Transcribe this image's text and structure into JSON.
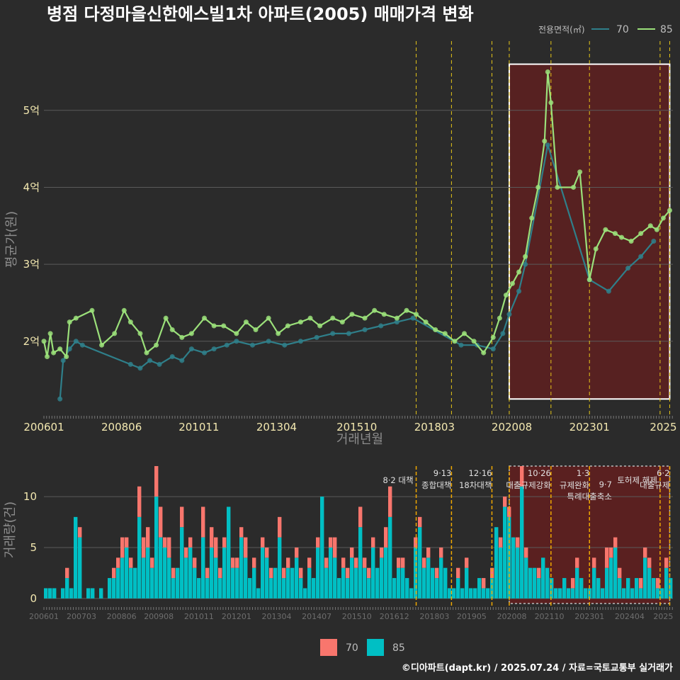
{
  "title": "병점 다정마을신한에스빌1차 아파트(2005) 매매가격 변화",
  "credit": "©디아파트(dapt.kr) / 2025.07.24 / 자료=국토교통부 실거래가",
  "colors": {
    "background": "#2b2b2b",
    "series_70_line": "#2f7f8a",
    "series_85_line": "#9be07a",
    "bar_70": "#f8766d",
    "bar_85": "#00bfc4",
    "highlight": "#6b1e1e",
    "policy_line": "#e6c619"
  },
  "chart_data": [
    {
      "type": "line",
      "name": "price",
      "title": "병점 다정마을신한에스빌1차 아파트(2005) 매매가격 변화",
      "xlabel": "거래년월",
      "ylabel": "평균가(원)",
      "x_ticks": [
        "200601",
        "200806",
        "201011",
        "201304",
        "201510",
        "201803",
        "202008",
        "202301",
        "2025"
      ],
      "y_ticks": [
        {
          "value": 2,
          "label": "2억"
        },
        {
          "value": 3,
          "label": "3억"
        },
        {
          "value": 4,
          "label": "4억"
        },
        {
          "value": 5,
          "label": "5억"
        }
      ],
      "xlim": [
        2006.0,
        2025.6
      ],
      "ylim": [
        1.05,
        5.9
      ],
      "legend_title": "전용면적(㎡)",
      "legend": [
        "70",
        "85"
      ],
      "highlight_range": {
        "from": 2020.5,
        "to": 2025.5
      },
      "policy_dates": [
        2017.6,
        2018.7,
        2019.96,
        2020.5,
        2021.8,
        2023.0,
        2025.2,
        2025.5
      ],
      "series": [
        {
          "name": "70",
          "points": [
            [
              2006.5,
              1.25
            ],
            [
              2006.6,
              1.75
            ],
            [
              2006.8,
              1.9
            ],
            [
              2007.0,
              2.0
            ],
            [
              2007.2,
              1.95
            ],
            [
              2008.7,
              1.7
            ],
            [
              2009.0,
              1.65
            ],
            [
              2009.3,
              1.75
            ],
            [
              2009.6,
              1.7
            ],
            [
              2010.0,
              1.8
            ],
            [
              2010.3,
              1.75
            ],
            [
              2010.6,
              1.9
            ],
            [
              2011.0,
              1.85
            ],
            [
              2011.3,
              1.9
            ],
            [
              2011.7,
              1.95
            ],
            [
              2012.0,
              2.0
            ],
            [
              2012.5,
              1.95
            ],
            [
              2013.0,
              2.0
            ],
            [
              2013.5,
              1.95
            ],
            [
              2014.0,
              2.0
            ],
            [
              2014.5,
              2.05
            ],
            [
              2015.0,
              2.1
            ],
            [
              2015.5,
              2.1
            ],
            [
              2016.0,
              2.15
            ],
            [
              2016.5,
              2.2
            ],
            [
              2017.0,
              2.25
            ],
            [
              2017.5,
              2.3
            ],
            [
              2019.0,
              1.95
            ],
            [
              2019.5,
              1.95
            ],
            [
              2020.0,
              1.9
            ],
            [
              2020.3,
              2.1
            ],
            [
              2020.5,
              2.35
            ],
            [
              2020.8,
              2.65
            ],
            [
              2021.0,
              3.0
            ],
            [
              2021.7,
              4.55
            ],
            [
              2023.0,
              2.8
            ],
            [
              2023.6,
              2.65
            ],
            [
              2024.2,
              2.95
            ],
            [
              2024.6,
              3.1
            ],
            [
              2025.0,
              3.3
            ]
          ]
        },
        {
          "name": "85",
          "points": [
            [
              2006.0,
              2.0
            ],
            [
              2006.1,
              1.8
            ],
            [
              2006.2,
              2.1
            ],
            [
              2006.3,
              1.85
            ],
            [
              2006.5,
              1.9
            ],
            [
              2006.7,
              1.8
            ],
            [
              2006.8,
              2.25
            ],
            [
              2007.0,
              2.3
            ],
            [
              2007.5,
              2.4
            ],
            [
              2007.8,
              1.95
            ],
            [
              2008.2,
              2.1
            ],
            [
              2008.5,
              2.4
            ],
            [
              2008.7,
              2.25
            ],
            [
              2009.0,
              2.1
            ],
            [
              2009.2,
              1.85
            ],
            [
              2009.5,
              1.95
            ],
            [
              2009.8,
              2.3
            ],
            [
              2010.0,
              2.15
            ],
            [
              2010.3,
              2.05
            ],
            [
              2010.6,
              2.1
            ],
            [
              2011.0,
              2.3
            ],
            [
              2011.3,
              2.2
            ],
            [
              2011.6,
              2.2
            ],
            [
              2012.0,
              2.1
            ],
            [
              2012.3,
              2.25
            ],
            [
              2012.6,
              2.15
            ],
            [
              2013.0,
              2.3
            ],
            [
              2013.3,
              2.1
            ],
            [
              2013.6,
              2.2
            ],
            [
              2014.0,
              2.25
            ],
            [
              2014.3,
              2.3
            ],
            [
              2014.6,
              2.2
            ],
            [
              2015.0,
              2.3
            ],
            [
              2015.3,
              2.25
            ],
            [
              2015.6,
              2.35
            ],
            [
              2016.0,
              2.3
            ],
            [
              2016.3,
              2.4
            ],
            [
              2016.6,
              2.35
            ],
            [
              2017.0,
              2.3
            ],
            [
              2017.3,
              2.4
            ],
            [
              2017.6,
              2.35
            ],
            [
              2017.9,
              2.25
            ],
            [
              2018.2,
              2.15
            ],
            [
              2018.5,
              2.1
            ],
            [
              2018.8,
              2.0
            ],
            [
              2019.1,
              2.1
            ],
            [
              2019.4,
              2.0
            ],
            [
              2019.7,
              1.85
            ],
            [
              2020.0,
              2.05
            ],
            [
              2020.2,
              2.3
            ],
            [
              2020.4,
              2.6
            ],
            [
              2020.6,
              2.75
            ],
            [
              2020.8,
              2.9
            ],
            [
              2021.0,
              3.1
            ],
            [
              2021.2,
              3.6
            ],
            [
              2021.4,
              4.0
            ],
            [
              2021.6,
              4.6
            ],
            [
              2021.7,
              5.5
            ],
            [
              2021.8,
              5.1
            ],
            [
              2022.0,
              4.0
            ],
            [
              2022.5,
              4.0
            ],
            [
              2022.7,
              4.2
            ],
            [
              2023.0,
              2.8
            ],
            [
              2023.2,
              3.2
            ],
            [
              2023.5,
              3.45
            ],
            [
              2023.8,
              3.4
            ],
            [
              2024.0,
              3.35
            ],
            [
              2024.3,
              3.3
            ],
            [
              2024.6,
              3.4
            ],
            [
              2024.9,
              3.5
            ],
            [
              2025.1,
              3.45
            ],
            [
              2025.3,
              3.6
            ],
            [
              2025.5,
              3.7
            ]
          ]
        }
      ]
    },
    {
      "type": "bar",
      "name": "volume",
      "ylabel": "거래량(건)",
      "x_ticks": [
        "200601",
        "200703",
        "200806",
        "200908",
        "201011",
        "201201",
        "201304",
        "201407",
        "201510",
        "201612",
        "201803",
        "201905",
        "202008",
        "202110",
        "202301",
        "202404",
        "2025"
      ],
      "y_ticks": [
        0,
        5,
        10
      ],
      "ylim": [
        -0.5,
        13
      ],
      "legend": [
        "70",
        "85"
      ],
      "policy_labels": [
        {
          "date": "8·2 대책",
          "x": 2017.6
        },
        {
          "date": "9·13\n종합대책",
          "x": 2018.7
        },
        {
          "date": "12·16\n18차대책",
          "x": 2019.96
        },
        {
          "date": "10·26\n대출규제강화",
          "x": 2021.8
        },
        {
          "date": "1·3\n규제완화",
          "x": 2023.0
        },
        {
          "date": "9·7\n특례대출축소",
          "x": 2023.7
        },
        {
          "date": "토허제 해제",
          "x": 2025.2
        },
        {
          "date": "6·2\n대출규제",
          "x": 2025.5
        }
      ],
      "series": [
        {
          "name": "85",
          "values": [
            1,
            1,
            1,
            0,
            1,
            2,
            1,
            8,
            6,
            0,
            1,
            1,
            0,
            1,
            0,
            2,
            2,
            3,
            4,
            5,
            3,
            3,
            8,
            4,
            5,
            3,
            10,
            6,
            5,
            4,
            2,
            3,
            7,
            4,
            5,
            3,
            2,
            6,
            2,
            5,
            4,
            2,
            5,
            9,
            3,
            3,
            6,
            4,
            2,
            3,
            1,
            5,
            4,
            2,
            3,
            6,
            2,
            3,
            3,
            4,
            2,
            1,
            3,
            2,
            5,
            10,
            3,
            5,
            4,
            2,
            3,
            2,
            4,
            3,
            7,
            3,
            2,
            5,
            3,
            4,
            5,
            8,
            2,
            3,
            3,
            2,
            1,
            5,
            7,
            3,
            4,
            3,
            2,
            4,
            3,
            1,
            1,
            2,
            1,
            3,
            1,
            1,
            2,
            1,
            1,
            2,
            7,
            5,
            9,
            8,
            6,
            5,
            11,
            4,
            3,
            3,
            2,
            4,
            3,
            2,
            1,
            1,
            2,
            1,
            1,
            3,
            2,
            1,
            1,
            3,
            2,
            1,
            3,
            4,
            5,
            2,
            1,
            2,
            1,
            2,
            1,
            4,
            3,
            2,
            1,
            1,
            3,
            2
          ]
        },
        {
          "name": "70",
          "values": [
            0,
            0,
            0,
            0,
            0,
            1,
            0,
            0,
            1,
            0,
            0,
            0,
            0,
            0,
            0,
            0,
            1,
            1,
            2,
            1,
            1,
            0,
            3,
            2,
            2,
            1,
            3,
            3,
            1,
            2,
            1,
            0,
            2,
            1,
            1,
            1,
            0,
            3,
            1,
            2,
            2,
            1,
            1,
            0,
            1,
            1,
            1,
            2,
            0,
            1,
            0,
            1,
            1,
            1,
            0,
            2,
            1,
            1,
            0,
            1,
            1,
            0,
            1,
            0,
            1,
            0,
            1,
            1,
            2,
            0,
            1,
            1,
            1,
            1,
            2,
            1,
            1,
            1,
            0,
            1,
            2,
            3,
            0,
            1,
            1,
            0,
            0,
            1,
            1,
            1,
            1,
            0,
            1,
            1,
            0,
            0,
            0,
            1,
            0,
            1,
            0,
            0,
            0,
            1,
            0,
            1,
            0,
            1,
            1,
            1,
            0,
            1,
            2,
            1,
            0,
            0,
            1,
            0,
            0,
            0,
            0,
            0,
            0,
            0,
            1,
            1,
            0,
            0,
            0,
            1,
            0,
            0,
            2,
            1,
            1,
            1,
            0,
            0,
            0,
            0,
            1,
            1,
            1,
            0,
            1,
            0,
            1,
            0
          ]
        }
      ]
    }
  ]
}
